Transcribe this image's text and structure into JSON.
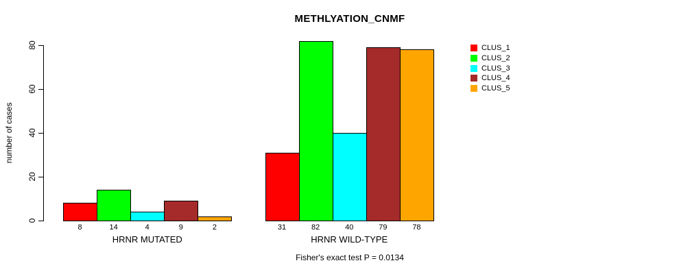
{
  "chart_data": {
    "type": "bar",
    "title": "METHLYATION_CNMF",
    "xlabel": "",
    "ylabel": "number of cases",
    "ylim": [
      0,
      80
    ],
    "yticks": [
      0,
      20,
      40,
      60,
      80
    ],
    "grid": false,
    "legend_position": "right",
    "y_tick_labels_rotated": true,
    "bar_value_labels_shown": true,
    "categories": [
      "HRNR MUTATED",
      "HRNR WILD-TYPE"
    ],
    "series": [
      {
        "name": "CLUS_1",
        "color": "#ff0000",
        "values": [
          8,
          31
        ]
      },
      {
        "name": "CLUS_2",
        "color": "#00ff00",
        "values": [
          14,
          82
        ]
      },
      {
        "name": "CLUS_3",
        "color": "#00ffff",
        "values": [
          4,
          40
        ]
      },
      {
        "name": "CLUS_4",
        "color": "#a52a2a",
        "values": [
          9,
          79
        ]
      },
      {
        "name": "CLUS_5",
        "color": "#ffa500",
        "values": [
          2,
          78
        ]
      }
    ],
    "annotation": "Fisher's exact test P = 0.0134",
    "axis_color": "#000000",
    "background_color": "#ffffff"
  }
}
